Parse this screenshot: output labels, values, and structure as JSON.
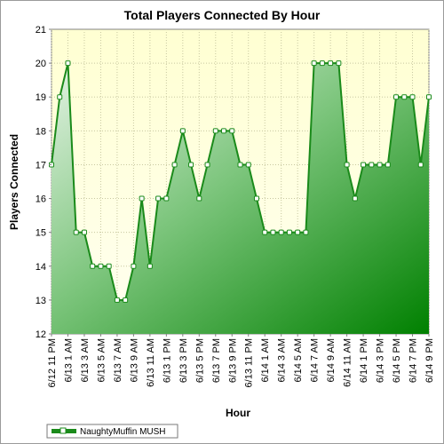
{
  "chart_data": {
    "type": "area",
    "title": "Total Players Connected By Hour",
    "xlabel": "Hour",
    "ylabel": "Players Connected",
    "ylim": [
      12,
      21
    ],
    "yticks": [
      12,
      13,
      14,
      15,
      16,
      17,
      18,
      19,
      20,
      21
    ],
    "grid": true,
    "legend_position": "bottom-left",
    "x_tick_labels": [
      "6/12 11 PM",
      "6/13 1 AM",
      "6/13 3 AM",
      "6/13 5 AM",
      "6/13 7 AM",
      "6/13 9 AM",
      "6/13 11 AM",
      "6/13 1 PM",
      "6/13 3 PM",
      "6/13 5 PM",
      "6/13 7 PM",
      "6/13 9 PM",
      "6/13 11 PM",
      "6/14 1 AM",
      "6/14 3 AM",
      "6/14 5 AM",
      "6/14 7 AM",
      "6/14 9 AM",
      "6/14 11 AM",
      "6/14 1 PM",
      "6/14 3 PM",
      "6/14 5 PM",
      "6/14 7 PM",
      "6/14 9 PM"
    ],
    "series": [
      {
        "name": "NaughtyMuffin MUSH",
        "values": [
          17,
          19,
          20,
          15,
          15,
          14,
          14,
          14,
          13,
          13,
          14,
          16,
          14,
          16,
          16,
          17,
          18,
          17,
          16,
          17,
          18,
          18,
          18,
          17,
          17,
          16,
          15,
          15,
          15,
          15,
          15,
          15,
          20,
          20,
          20,
          20,
          17,
          16,
          17,
          17,
          17,
          17,
          19,
          19,
          19,
          17,
          19
        ]
      }
    ],
    "colors": {
      "line": "#1a8a1a",
      "fill_light": "#d9eed9",
      "fill_dark": "#008000",
      "plot_bg_top": "#ffffd2",
      "plot_bg_bottom": "#fffff0",
      "grid": "#c8c8a0"
    }
  }
}
